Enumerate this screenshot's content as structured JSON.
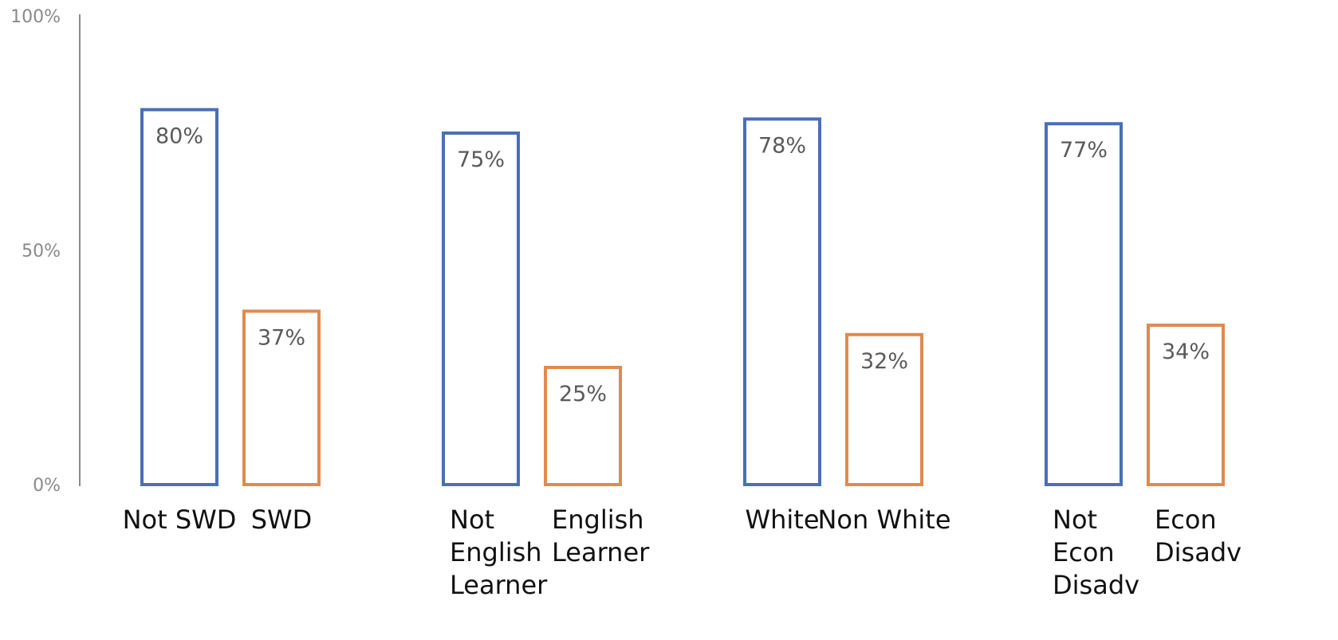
{
  "chart_data": {
    "type": "bar",
    "title": "",
    "xlabel": "",
    "ylabel": "",
    "ylim": [
      0,
      100
    ],
    "y_ticks": [
      {
        "value": 0,
        "label": "0%"
      },
      {
        "value": 50,
        "label": "50%"
      },
      {
        "value": 100,
        "label": "100%"
      }
    ],
    "grid": false,
    "legend": "none",
    "groups": [
      {
        "bars": [
          {
            "label": [
              "Not SWD"
            ],
            "value": 80,
            "display": "80%",
            "color": "#4a6fb5"
          },
          {
            "label": [
              "SWD"
            ],
            "value": 37,
            "display": "37%",
            "color": "#e08a4e"
          }
        ]
      },
      {
        "bars": [
          {
            "label": [
              "Not",
              "English",
              "Learner"
            ],
            "value": 75,
            "display": "75%",
            "color": "#4a6fb5"
          },
          {
            "label": [
              "English",
              "Learner"
            ],
            "value": 25,
            "display": "25%",
            "color": "#e08a4e"
          }
        ]
      },
      {
        "bars": [
          {
            "label": [
              "White"
            ],
            "value": 78,
            "display": "78%",
            "color": "#4a6fb5"
          },
          {
            "label": [
              "Non White"
            ],
            "value": 32,
            "display": "32%",
            "color": "#e08a4e"
          }
        ]
      },
      {
        "bars": [
          {
            "label": [
              "Not",
              "Econ",
              "Disadv"
            ],
            "value": 77,
            "display": "77%",
            "color": "#4a6fb5"
          },
          {
            "label": [
              "Econ",
              "Disadv"
            ],
            "value": 34,
            "display": "34%",
            "color": "#e08a4e"
          }
        ]
      }
    ]
  }
}
